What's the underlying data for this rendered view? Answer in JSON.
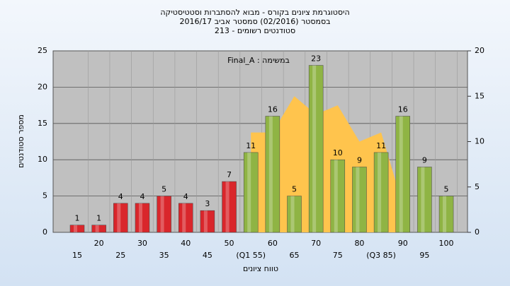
{
  "chart_data": {
    "type": "bar",
    "title": "היסטוגרמת ציונים בקורס - מבוא להסתברות וסטטיסטיקה",
    "subtitle": "בסמסטר (02/2016) סמסטר אביב 2016/17",
    "subtitle2": "סטודנטים רשומים - 213",
    "annotation": "במשימה : Final_A",
    "x_label": "טווח ציונים",
    "y_label": "מספר סטודנטים",
    "categories": [
      "15",
      "20",
      "25",
      "30",
      "35",
      "40",
      "45",
      "50",
      "(Q1 55)",
      "60",
      "65",
      "70",
      "75",
      "80",
      "(Q3 85)",
      "90",
      "95",
      "100"
    ],
    "series": [
      {
        "values": [
          1,
          1,
          4,
          4,
          5,
          4,
          3,
          7,
          11,
          16,
          5,
          23,
          10,
          9,
          11,
          16,
          9,
          5
        ],
        "colors": [
          "#d9262b",
          "#d9262b",
          "#d9262b",
          "#d9262b",
          "#d9262b",
          "#d9262b",
          "#d9262b",
          "#d9262b",
          "#8fb444",
          "#8fb444",
          "#8fb444",
          "#8fb444",
          "#8fb444",
          "#8fb444",
          "#8fb444",
          "#8fb444",
          "#8fb444",
          "#8fb444"
        ]
      },
      {
        "type": "area",
        "axis": "y2",
        "color": "#ffc44d",
        "values": [
          null,
          null,
          null,
          null,
          null,
          null,
          null,
          null,
          11,
          11,
          15,
          13,
          14,
          10,
          11,
          3,
          null,
          null
        ]
      }
    ],
    "ylim": [
      0,
      25
    ],
    "yticks": [
      0,
      5,
      10,
      15,
      20,
      25
    ],
    "y2lim": [
      0,
      20
    ],
    "y2ticks": [
      0,
      5,
      10,
      15,
      20
    ],
    "grid": true
  }
}
